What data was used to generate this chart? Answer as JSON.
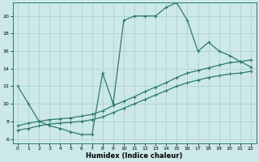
{
  "xlabel": "Humidex (Indice chaleur)",
  "bg_color": "#cce8e8",
  "line_color": "#2d7a6e",
  "grid_color": "#aacece",
  "xlim": [
    -0.5,
    22.5
  ],
  "ylim": [
    5.5,
    21.5
  ],
  "yticks": [
    6,
    8,
    10,
    12,
    14,
    16,
    18,
    20
  ],
  "xticks": [
    0,
    1,
    2,
    3,
    4,
    5,
    6,
    7,
    8,
    9,
    10,
    11,
    12,
    13,
    14,
    15,
    16,
    17,
    18,
    19,
    20,
    21,
    22
  ],
  "line1_x": [
    0,
    1,
    2,
    3,
    4,
    5,
    6,
    7,
    8,
    9,
    10,
    11,
    12,
    13,
    14,
    15,
    16,
    17,
    18,
    19,
    20,
    21,
    22
  ],
  "line1_y": [
    12,
    10,
    8,
    7.5,
    7.2,
    6.8,
    6.5,
    6.5,
    13.5,
    10.0,
    19.5,
    20.0,
    20.0,
    20.0,
    21.0,
    21.5,
    19.5,
    16.0,
    17.0,
    16.0,
    15.5,
    14.8,
    14.2
  ],
  "line2_x": [
    0,
    1,
    2,
    3,
    4,
    5,
    6,
    7,
    8,
    9,
    10,
    11,
    12,
    13,
    14,
    15,
    16,
    17,
    18,
    19,
    20,
    21,
    22
  ],
  "line2_y": [
    7.5,
    7.8,
    8.0,
    8.2,
    8.3,
    8.4,
    8.6,
    8.8,
    9.2,
    9.8,
    10.3,
    10.8,
    11.4,
    11.9,
    12.4,
    13.0,
    13.5,
    13.8,
    14.1,
    14.4,
    14.7,
    14.8,
    15.0
  ],
  "line3_x": [
    0,
    1,
    2,
    3,
    4,
    5,
    6,
    7,
    8,
    9,
    10,
    11,
    12,
    13,
    14,
    15,
    16,
    17,
    18,
    19,
    20,
    21,
    22
  ],
  "line3_y": [
    7.0,
    7.2,
    7.5,
    7.7,
    7.8,
    7.9,
    8.0,
    8.2,
    8.5,
    9.0,
    9.5,
    10.0,
    10.5,
    11.0,
    11.5,
    12.0,
    12.4,
    12.7,
    13.0,
    13.2,
    13.4,
    13.5,
    13.7
  ]
}
